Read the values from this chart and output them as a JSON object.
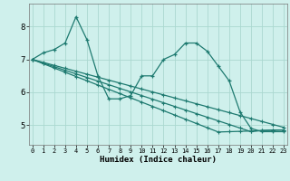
{
  "xlabel": "Humidex (Indice chaleur)",
  "bg_color": "#cff0ec",
  "grid_color": "#aad8d0",
  "line_color": "#1e7a70",
  "x_ticks": [
    0,
    1,
    2,
    3,
    4,
    5,
    6,
    7,
    8,
    9,
    10,
    11,
    12,
    13,
    14,
    15,
    16,
    17,
    18,
    19,
    20,
    21,
    22,
    23
  ],
  "y_ticks": [
    5,
    6,
    7,
    8
  ],
  "ylim": [
    4.4,
    8.7
  ],
  "xlim": [
    -0.3,
    23.3
  ],
  "series_main": [
    7.0,
    7.2,
    7.3,
    7.5,
    8.3,
    7.6,
    6.5,
    5.8,
    5.8,
    5.9,
    6.5,
    6.5,
    7.0,
    7.15,
    7.5,
    7.5,
    7.25,
    6.8,
    6.35,
    5.4,
    4.9,
    4.8,
    4.8,
    4.8
  ],
  "series_line1": [
    7.0,
    6.87,
    6.74,
    6.61,
    6.48,
    6.35,
    6.22,
    6.09,
    5.96,
    5.83,
    5.7,
    5.57,
    5.44,
    5.31,
    5.18,
    5.05,
    4.92,
    4.79,
    4.8,
    4.81,
    4.82,
    4.83,
    4.84,
    4.85
  ],
  "series_line2": [
    7.0,
    6.89,
    6.78,
    6.67,
    6.56,
    6.45,
    6.34,
    6.23,
    6.12,
    6.01,
    5.9,
    5.79,
    5.68,
    5.57,
    5.46,
    5.35,
    5.24,
    5.13,
    5.02,
    4.91,
    4.8,
    4.84,
    4.85,
    4.85
  ],
  "series_line3": [
    7.0,
    6.91,
    6.82,
    6.73,
    6.64,
    6.55,
    6.46,
    6.37,
    6.28,
    6.19,
    6.1,
    6.01,
    5.92,
    5.83,
    5.74,
    5.65,
    5.56,
    5.47,
    5.38,
    5.29,
    5.2,
    5.11,
    5.02,
    4.93
  ]
}
